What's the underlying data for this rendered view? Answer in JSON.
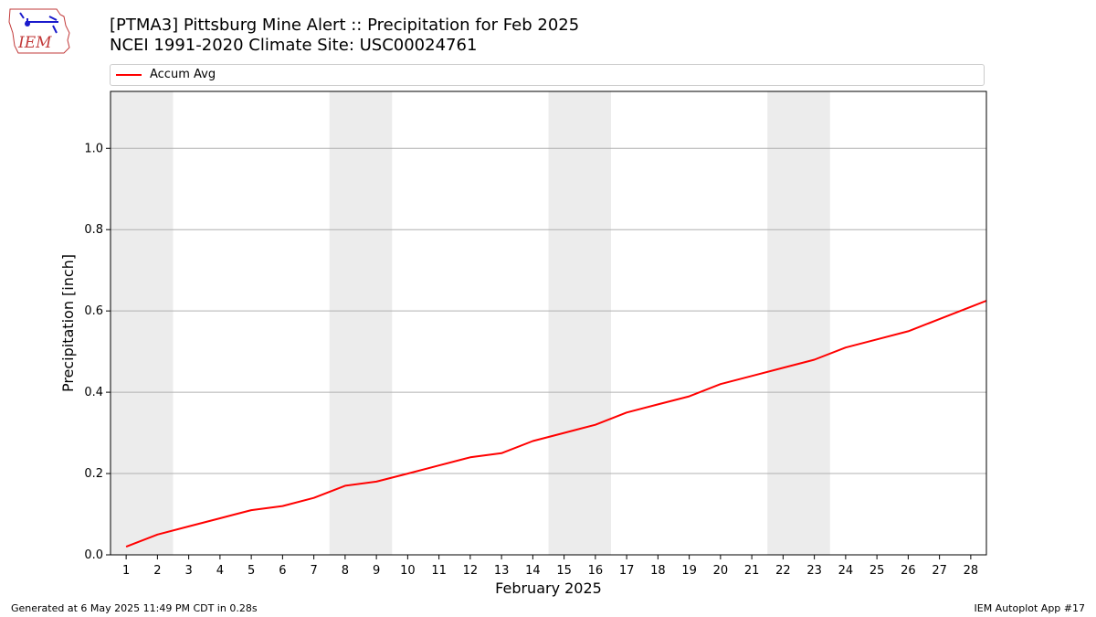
{
  "title_line1": "[PTMA3] Pittsburg Mine Alert :: Precipitation for Feb 2025",
  "title_line2": "NCEI 1991-2020 Climate Site: USC00024761",
  "logo_text": "IEM",
  "footer_left": "Generated at 6 May 2025 11:49 PM CDT in 0.28s",
  "footer_right": "IEM Autoplot App #17",
  "colors": {
    "line": "#ff0000",
    "weekend_band": "#ececec",
    "grid": "#b0b0b0"
  },
  "chart_data": {
    "type": "line",
    "xlabel": "February 2025",
    "ylabel": "Precipitation [inch]",
    "xlim": [
      0.5,
      28.5
    ],
    "ylim": [
      0.0,
      1.14
    ],
    "x_ticks": [
      "1",
      "2",
      "3",
      "4",
      "5",
      "6",
      "7",
      "8",
      "9",
      "10",
      "11",
      "12",
      "13",
      "14",
      "15",
      "16",
      "17",
      "18",
      "19",
      "20",
      "21",
      "22",
      "23",
      "24",
      "25",
      "26",
      "27",
      "28"
    ],
    "y_ticks": [
      "0.0",
      "0.2",
      "0.4",
      "0.6",
      "0.8",
      "1.0"
    ],
    "grid": "horizontal",
    "legend": "top",
    "shaded_ranges": [
      [
        0.5,
        2.5
      ],
      [
        7.5,
        9.5
      ],
      [
        14.5,
        16.5
      ],
      [
        21.5,
        23.5
      ]
    ],
    "series": [
      {
        "name": "Accum Avg",
        "x": [
          1,
          2,
          3,
          4,
          5,
          6,
          7,
          8,
          9,
          10,
          11,
          12,
          13,
          14,
          15,
          16,
          17,
          18,
          19,
          20,
          21,
          22,
          23,
          24,
          25,
          26,
          27,
          28,
          28.5
        ],
        "values": [
          0.02,
          0.05,
          0.07,
          0.09,
          0.11,
          0.12,
          0.14,
          0.17,
          0.18,
          0.2,
          0.22,
          0.24,
          0.25,
          0.28,
          0.3,
          0.32,
          0.35,
          0.37,
          0.39,
          0.42,
          0.44,
          0.46,
          0.48,
          0.51,
          0.53,
          0.55,
          0.58,
          0.61,
          0.625
        ]
      }
    ]
  }
}
